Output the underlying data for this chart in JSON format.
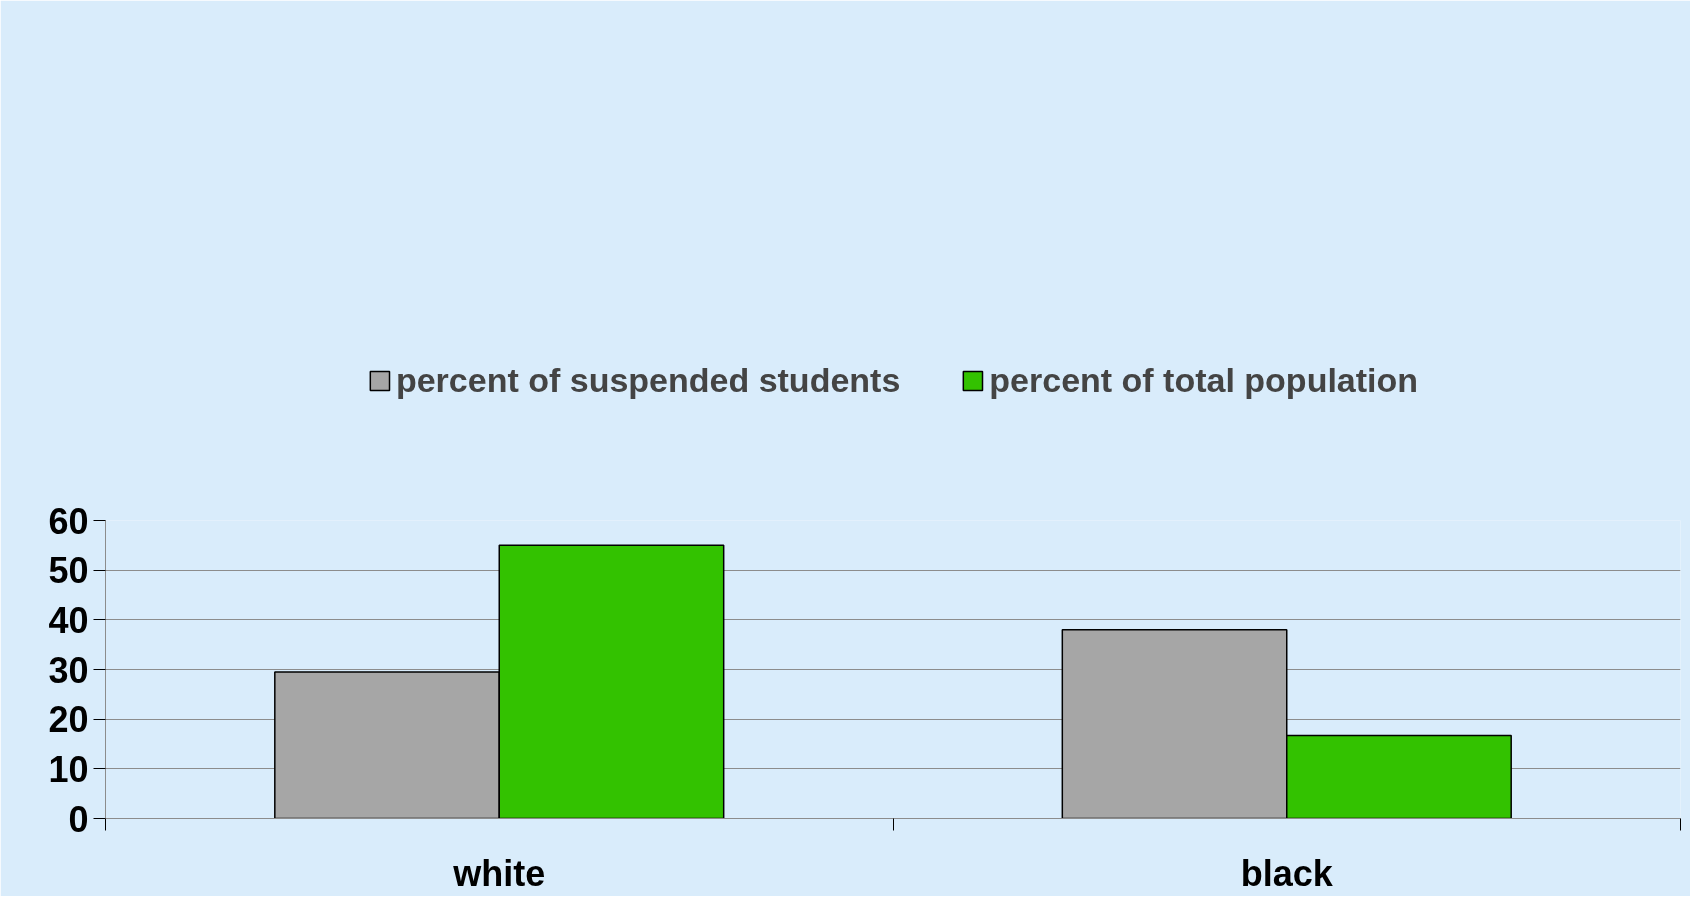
{
  "chart_data": {
    "type": "bar",
    "categories": [
      "white",
      "black"
    ],
    "series": [
      {
        "name": "percent of suspended students",
        "color": "#a6a6a6",
        "values": [
          29.5,
          38
        ]
      },
      {
        "name": "percent of total population",
        "color": "#33c200",
        "values": [
          55,
          16.7
        ]
      }
    ],
    "ylim": [
      0,
      60
    ],
    "yticks": [
      0,
      10,
      20,
      30,
      40,
      50,
      60
    ],
    "grid": "y",
    "legend": "top"
  }
}
